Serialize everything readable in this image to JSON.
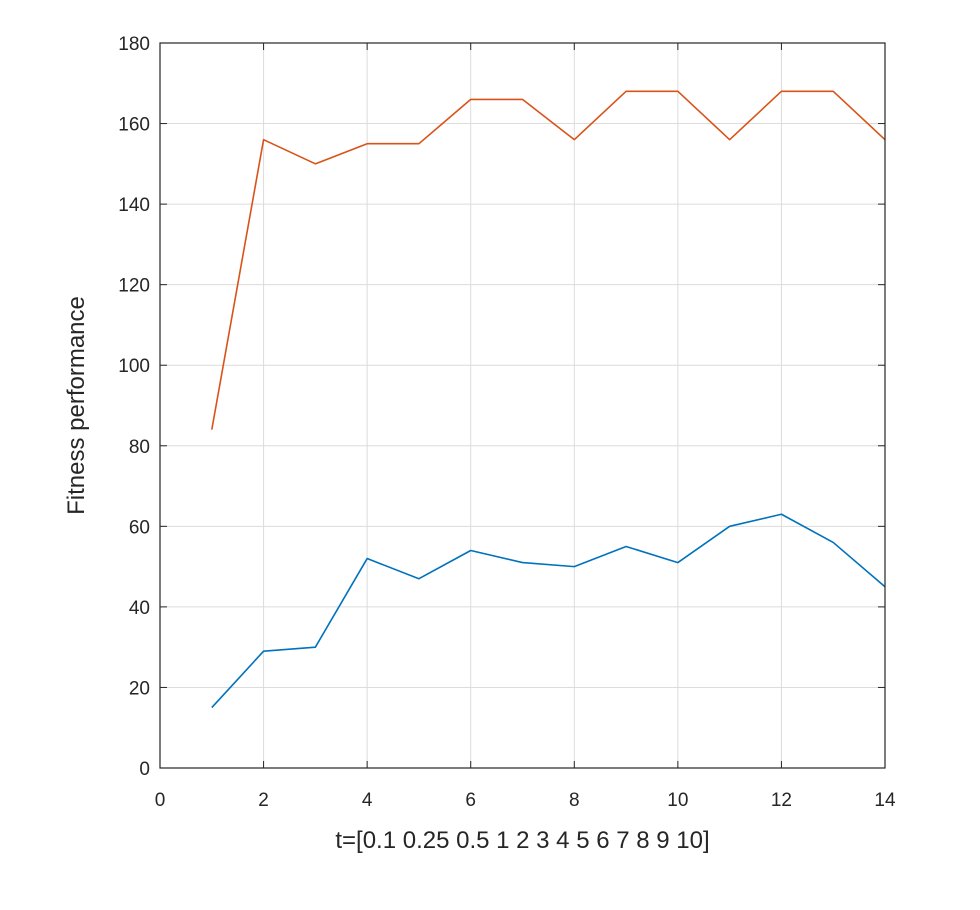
{
  "chart_data": {
    "type": "line",
    "title": "",
    "xlabel": "t=[0.1 0.25 0.5 1 2 3 4 5 6 7 8 9 10]",
    "ylabel": "Fitness performance",
    "xlim": [
      0,
      14
    ],
    "ylim": [
      0,
      180
    ],
    "xticks": [
      0,
      2,
      4,
      6,
      8,
      10,
      12,
      14
    ],
    "yticks": [
      0,
      20,
      40,
      60,
      80,
      100,
      120,
      140,
      160,
      180
    ],
    "grid": true,
    "x": [
      1,
      2,
      3,
      4,
      5,
      6,
      7,
      8,
      9,
      10,
      11,
      12,
      13,
      14
    ],
    "series": [
      {
        "color": "#0072BD",
        "values": [
          15,
          29,
          30,
          52,
          47,
          54,
          51,
          50,
          55,
          51,
          60,
          63,
          56,
          45
        ]
      },
      {
        "color": "#D95319",
        "values": [
          84,
          156,
          150,
          155,
          155,
          166,
          166,
          156,
          168,
          168,
          156,
          168,
          168,
          156
        ]
      }
    ]
  }
}
